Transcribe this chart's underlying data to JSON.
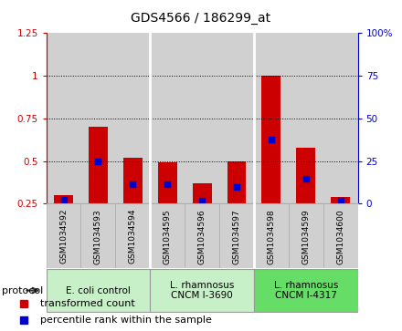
{
  "title": "GDS4566 / 186299_at",
  "samples": [
    "GSM1034592",
    "GSM1034593",
    "GSM1034594",
    "GSM1034595",
    "GSM1034596",
    "GSM1034597",
    "GSM1034598",
    "GSM1034599",
    "GSM1034600"
  ],
  "red_values": [
    0.3,
    0.7,
    0.52,
    0.49,
    0.37,
    0.5,
    1.0,
    0.58,
    0.29
  ],
  "blue_values": [
    0.275,
    0.495,
    0.365,
    0.365,
    0.265,
    0.345,
    0.625,
    0.395,
    0.265
  ],
  "ylim_left": [
    0.25,
    1.25
  ],
  "ylim_right": [
    0,
    100
  ],
  "yticks_left": [
    0.25,
    0.5,
    0.75,
    1.0,
    1.25
  ],
  "yticks_right": [
    0,
    25,
    50,
    75,
    100
  ],
  "ytick_labels_left": [
    "0.25",
    "0.5",
    "0.75",
    "1",
    "1.25"
  ],
  "ytick_labels_right": [
    "0",
    "25",
    "50",
    "75",
    "100%"
  ],
  "groups": [
    {
      "label": "E. coli control",
      "start": 0,
      "end": 3,
      "color": "#c8f0c8"
    },
    {
      "label": "L. rhamnosus\nCNCM I-3690",
      "start": 3,
      "end": 6,
      "color": "#c8f0c8"
    },
    {
      "label": "L. rhamnosus\nCNCM I-4317",
      "start": 6,
      "end": 9,
      "color": "#66dd66"
    }
  ],
  "protocol_label": "protocol",
  "bar_width": 0.55,
  "bar_color_red": "#cc0000",
  "bar_color_blue": "#0000cc",
  "bg_color": "#d0d0d0",
  "white_bg": "#ffffff",
  "grid_color": "#000000",
  "legend_red": "transformed count",
  "legend_blue": "percentile rank within the sample",
  "title_fontsize": 10,
  "tick_fontsize": 7.5,
  "label_fontsize": 7.5
}
